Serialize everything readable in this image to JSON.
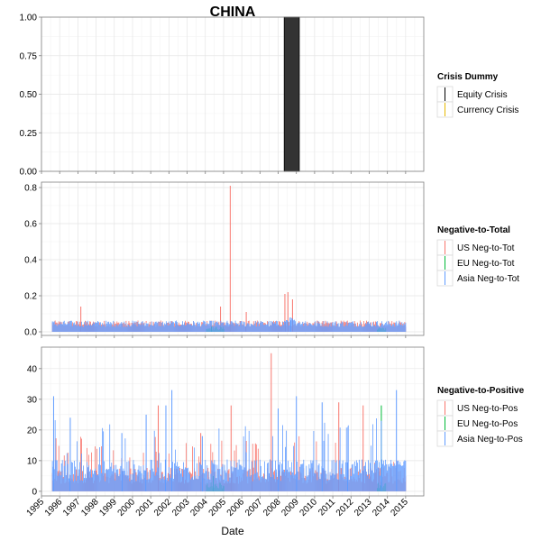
{
  "chart_data": {
    "type": "bar",
    "title": "CHINA",
    "xlabel": "Date",
    "x_range": [
      "1995-01-01",
      "2015-12-31"
    ],
    "x_ticks": [
      "1995",
      "1996",
      "1997",
      "1998",
      "1999",
      "2000",
      "2001",
      "2002",
      "2003",
      "2004",
      "2005",
      "2006",
      "2007",
      "2008",
      "2009",
      "2010",
      "2011",
      "2012",
      "2013",
      "2014",
      "2015"
    ],
    "grid": true,
    "panels": [
      {
        "legend_title": "Crisis Dummy",
        "ylim": [
          0,
          1
        ],
        "y_ticks": [
          "0.00",
          "0.25",
          "0.50",
          "0.75",
          "1.00"
        ],
        "y_tick_values": [
          0,
          0.25,
          0.5,
          0.75,
          1
        ],
        "series": [
          {
            "name": "Equity Crisis",
            "color": "#000000",
            "periods": [
              [
                "2008-05-01",
                "2009-03-01"
              ]
            ],
            "value": 1
          },
          {
            "name": "Currency Crisis",
            "color": "#e6b800",
            "periods": []
          }
        ]
      },
      {
        "legend_title": "Negative-to-Total",
        "ylim": [
          -0.02,
          0.83
        ],
        "y_ticks": [
          "0.0",
          "0.2",
          "0.4",
          "0.6",
          "0.8"
        ],
        "y_tick_values": [
          0,
          0.2,
          0.4,
          0.6,
          0.8
        ],
        "series": [
          {
            "name": "US Neg-to-Tot",
            "color": "#f8766d",
            "typical": 0.05,
            "spikes": [
              [
                "1997-03-01",
                0.14
              ],
              [
                "2004-11-01",
                0.14
              ],
              [
                "2005-05-15",
                0.81
              ],
              [
                "2006-04-01",
                0.11
              ],
              [
                "2008-05-15",
                0.21
              ],
              [
                "2008-07-15",
                0.22
              ],
              [
                "2008-10-15",
                0.18
              ]
            ]
          },
          {
            "name": "EU Neg-to-Tot",
            "color": "#00ba38",
            "typical": 0.02,
            "spikes": [
              [
                "2004-05-01",
                0.03
              ]
            ]
          },
          {
            "name": "Asia Neg-to-Tot",
            "color": "#619cff",
            "typical": 0.05,
            "spikes": [
              [
                "2008-09-01",
                0.08
              ]
            ]
          }
        ]
      },
      {
        "legend_title": "Negative-to-Positive",
        "ylim": [
          -1.5,
          47
        ],
        "y_ticks": [
          "0",
          "10",
          "20",
          "30",
          "40"
        ],
        "y_tick_values": [
          0,
          10,
          20,
          30,
          40
        ],
        "series": [
          {
            "name": "US Neg-to-Pos",
            "color": "#f8766d",
            "typical": 6,
            "spikes": [
              [
                "2001-06-01",
                28
              ],
              [
                "2003-10-01",
                19
              ],
              [
                "2005-06-01",
                28
              ],
              [
                "2006-08-01",
                10
              ],
              [
                "2007-08-15",
                45
              ],
              [
                "2011-05-01",
                29
              ],
              [
                "2012-09-01",
                28
              ]
            ]
          },
          {
            "name": "EU Neg-to-Pos",
            "color": "#00ba38",
            "typical": 2,
            "spikes": [
              [
                "2004-06-01",
                5
              ],
              [
                "2013-09-01",
                28
              ]
            ]
          },
          {
            "name": "Asia Neg-to-Pos",
            "color": "#619cff",
            "typical": 8,
            "spikes": [
              [
                "1995-09-01",
                31
              ],
              [
                "1996-08-01",
                24
              ],
              [
                "1999-06-01",
                19
              ],
              [
                "2000-10-01",
                25
              ],
              [
                "2001-11-01",
                28
              ],
              [
                "2002-03-01",
                33
              ],
              [
                "2003-11-01",
                18
              ],
              [
                "2008-01-01",
                27
              ],
              [
                "2009-01-01",
                31
              ],
              [
                "2010-06-01",
                29
              ],
              [
                "2011-11-01",
                21
              ],
              [
                "2013-09-01",
                23
              ],
              [
                "2014-07-01",
                33
              ]
            ]
          }
        ]
      }
    ]
  }
}
